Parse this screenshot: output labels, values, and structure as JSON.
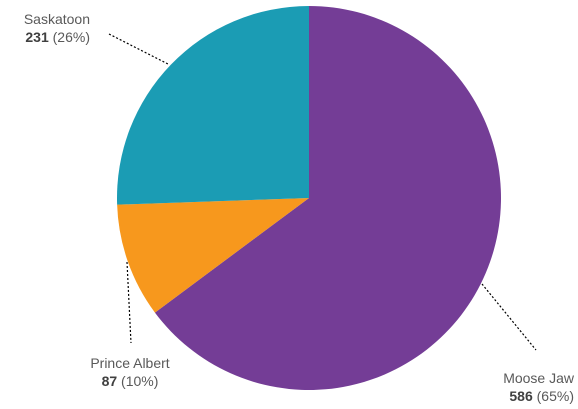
{
  "chart_data": {
    "type": "pie",
    "slices": [
      {
        "label": "Moose Jaw",
        "value": 586,
        "percent": "(65%)",
        "color": "#743d96"
      },
      {
        "label": "Prince Albert",
        "value": 87,
        "percent": "(10%)",
        "color": "#f7981d"
      },
      {
        "label": "Saskatoon",
        "value": 231,
        "percent": "(26%)",
        "color": "#1b9cb4"
      }
    ]
  }
}
